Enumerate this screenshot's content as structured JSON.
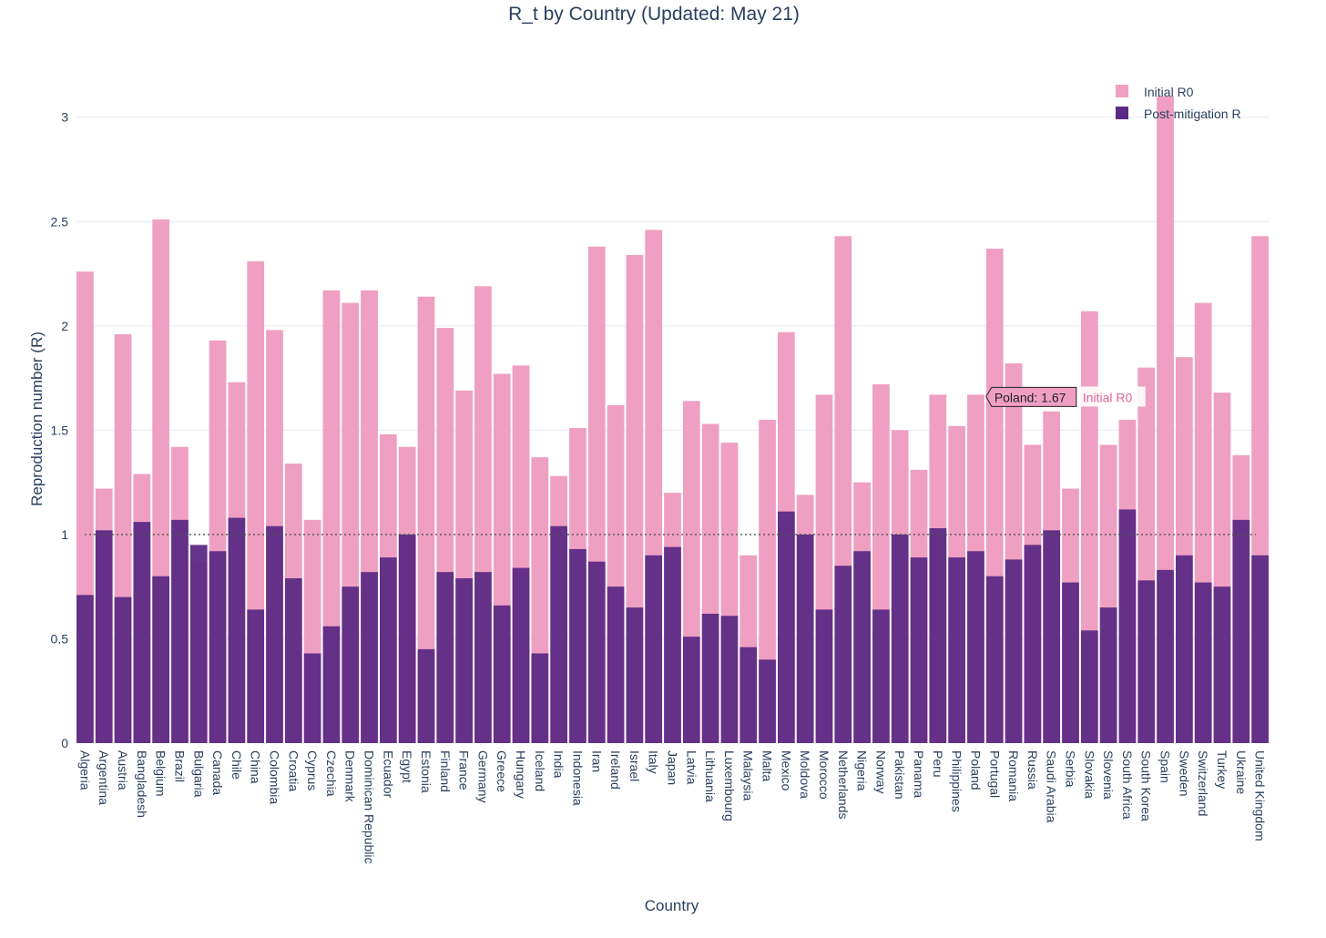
{
  "chart_data": {
    "type": "bar",
    "title": "R_t by Country (Updated: May 21)",
    "xlabel": "Country",
    "ylabel": "Reproduction number (R)",
    "ylim": [
      0,
      3.3
    ],
    "yticks": [
      0,
      0.5,
      1,
      1.5,
      2,
      2.5,
      3
    ],
    "ytick_labels": [
      "0",
      "0.5",
      "1",
      "1.5",
      "2",
      "2.5",
      "3"
    ],
    "grid": true,
    "legend_position": "top-right",
    "reference_line": {
      "y": 1,
      "style": "dotted"
    },
    "categories": [
      "Algeria",
      "Argentina",
      "Austria",
      "Bangladesh",
      "Belgium",
      "Brazil",
      "Bulgaria",
      "Canada",
      "Chile",
      "China",
      "Colombia",
      "Croatia",
      "Cyprus",
      "Czechia",
      "Denmark",
      "Dominican Republic",
      "Ecuador",
      "Egypt",
      "Estonia",
      "Finland",
      "France",
      "Germany",
      "Greece",
      "Hungary",
      "Iceland",
      "India",
      "Indonesia",
      "Iran",
      "Ireland",
      "Israel",
      "Italy",
      "Japan",
      "Latvia",
      "Lithuania",
      "Luxembourg",
      "Malaysia",
      "Malta",
      "Mexico",
      "Moldova",
      "Morocco",
      "Netherlands",
      "Nigeria",
      "Norway",
      "Pakistan",
      "Panama",
      "Peru",
      "Philippines",
      "Poland",
      "Portugal",
      "Romania",
      "Russia",
      "Saudi Arabia",
      "Serbia",
      "Slovakia",
      "Slovenia",
      "South Africa",
      "South Korea",
      "Spain",
      "Sweden",
      "Switzerland",
      "Turkey",
      "Ukraine",
      "United Kingdom"
    ],
    "series": [
      {
        "name": "Initial R0",
        "color": "#ef9fc2",
        "values": [
          2.26,
          1.22,
          1.96,
          1.29,
          2.51,
          1.42,
          0.87,
          1.93,
          1.73,
          2.31,
          1.98,
          1.34,
          1.07,
          2.17,
          2.11,
          2.17,
          1.48,
          1.42,
          2.14,
          1.99,
          1.69,
          2.19,
          1.77,
          1.81,
          1.37,
          1.28,
          1.51,
          2.38,
          1.62,
          2.34,
          2.46,
          1.2,
          1.64,
          1.53,
          1.44,
          0.9,
          1.55,
          1.97,
          1.19,
          1.67,
          2.43,
          1.25,
          1.72,
          1.5,
          1.31,
          1.67,
          1.52,
          1.67,
          2.37,
          1.82,
          1.43,
          1.59,
          1.22,
          2.07,
          1.43,
          1.55,
          1.8,
          3.1,
          1.85,
          2.11,
          1.68,
          1.38,
          2.43
        ]
      },
      {
        "name": "Post-mitigation R",
        "color": "#5c2a85",
        "values": [
          0.71,
          1.02,
          0.7,
          1.06,
          0.8,
          1.07,
          0.95,
          0.92,
          1.08,
          0.64,
          1.04,
          0.79,
          0.43,
          0.56,
          0.75,
          0.82,
          0.89,
          1.0,
          0.45,
          0.82,
          0.79,
          0.82,
          0.66,
          0.84,
          0.43,
          1.04,
          0.93,
          0.87,
          0.75,
          0.65,
          0.9,
          0.94,
          0.51,
          0.62,
          0.61,
          0.46,
          0.4,
          1.11,
          1.0,
          0.64,
          0.85,
          0.92,
          0.64,
          1.0,
          0.89,
          1.03,
          0.89,
          0.92,
          0.8,
          0.88,
          0.95,
          1.02,
          0.77,
          0.54,
          0.65,
          1.12,
          0.78,
          0.83,
          0.9,
          0.77,
          0.75,
          1.07,
          0.9
        ]
      }
    ],
    "hover": {
      "country": "Poland",
      "series": "Initial R0",
      "label": "Poland: 1.67",
      "trace_label": "Initial R0"
    }
  }
}
